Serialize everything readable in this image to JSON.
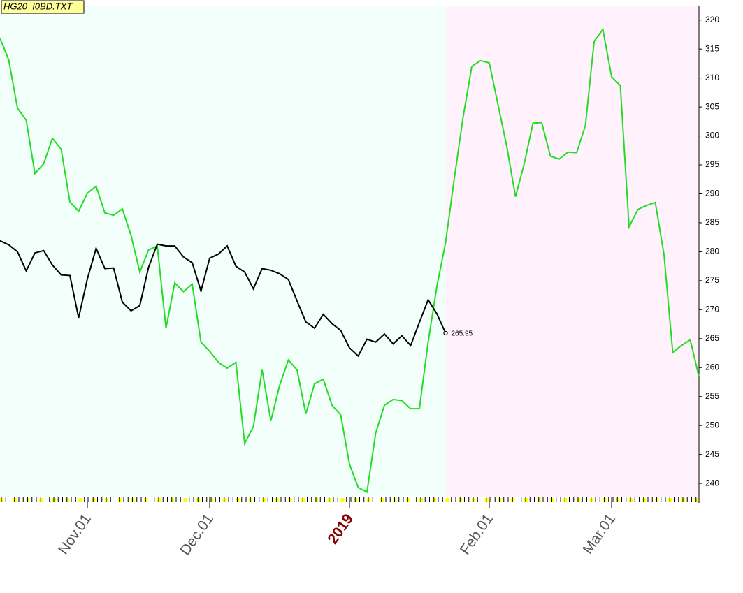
{
  "chart_data": {
    "type": "line",
    "title": "HG20_I0BD.TXT",
    "categories": [
      null,
      null,
      null,
      null,
      null,
      null,
      null,
      null,
      null,
      null,
      "Nov.01",
      null,
      null,
      null,
      null,
      null,
      null,
      null,
      null,
      null,
      null,
      null,
      null,
      null,
      "Dec.01",
      null,
      null,
      null,
      null,
      null,
      null,
      null,
      null,
      null,
      null,
      null,
      null,
      null,
      null,
      null,
      "2019",
      null,
      null,
      null,
      null,
      null,
      null,
      null,
      null,
      null,
      null,
      null,
      null,
      null,
      null,
      null,
      "Feb.01",
      null,
      null,
      null,
      null,
      null,
      null,
      null,
      null,
      null,
      null,
      null,
      null,
      null,
      "Mar.01",
      null,
      null,
      null,
      null,
      null,
      null,
      null,
      null,
      null,
      null
    ],
    "series": [
      {
        "color": "#22dd22",
        "values": [
          316.9,
          313.1,
          304.8,
          302.7,
          293.5,
          295.2,
          299.6,
          297.7,
          288.6,
          287.0,
          290.1,
          291.3,
          286.7,
          286.3,
          287.4,
          282.8,
          276.5,
          280.3,
          281.0,
          266.8,
          274.6,
          273.1,
          274.4,
          264.4,
          262.8,
          260.9,
          259.9,
          260.9,
          246.9,
          249.8,
          259.6,
          250.8,
          256.9,
          261.3,
          259.6,
          252.0,
          257.2,
          258.0,
          253.5,
          251.8,
          243.3,
          239.3,
          238.5,
          248.7,
          253.5,
          254.5,
          254.3,
          252.9,
          252.9,
          264.4,
          274.0,
          281.6,
          292.7,
          303.2,
          312.0,
          313.0,
          312.6,
          305.4,
          298.2,
          289.5,
          295.2,
          302.2,
          302.3,
          296.5,
          296.0,
          297.2,
          297.1,
          301.8,
          316.3,
          318.4,
          310.2,
          308.7,
          284.3,
          287.3,
          288.0,
          288.5,
          279.5,
          262.6,
          263.8,
          264.8,
          258.4
        ]
      },
      {
        "color": "#000000",
        "values": [
          281.9,
          281.2,
          280.0,
          276.7,
          279.8,
          280.2,
          277.7,
          276.0,
          275.9,
          268.6,
          275.3,
          280.6,
          277.1,
          277.2,
          271.3,
          269.8,
          270.7,
          277.3,
          281.3,
          281.0,
          281.0,
          279.1,
          278.1,
          273.2,
          278.9,
          279.6,
          281.0,
          277.5,
          276.5,
          273.6,
          277.1,
          276.8,
          276.2,
          275.2,
          271.5,
          267.9,
          266.8,
          269.2,
          267.6,
          266.4,
          263.4,
          262.0,
          264.9,
          264.4,
          265.8,
          264.1,
          265.5,
          263.8,
          267.8,
          271.7,
          269.3,
          265.95,
          null,
          null,
          null,
          null,
          null,
          null,
          null,
          null,
          null,
          null,
          null,
          null,
          null,
          null,
          null,
          null,
          null,
          null,
          null,
          null,
          null,
          null,
          null,
          null,
          null,
          null,
          null,
          null,
          null
        ]
      }
    ],
    "ylim": [
      237.6,
      322.5
    ],
    "yticks": [
      240,
      245,
      250,
      255,
      260,
      265,
      270,
      275,
      280,
      285,
      290,
      295,
      300,
      305,
      310,
      315,
      320
    ]
  }
}
